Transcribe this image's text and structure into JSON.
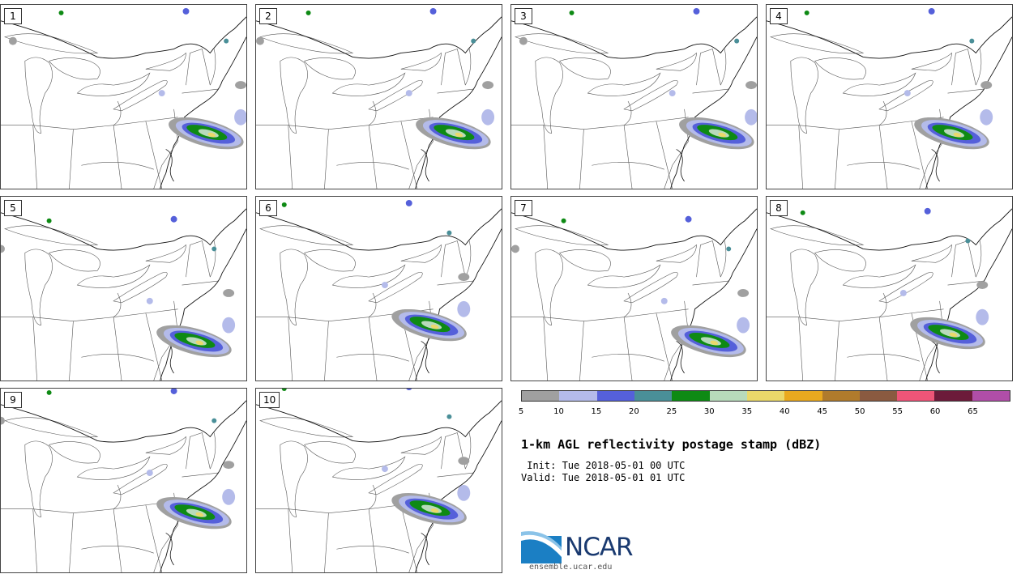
{
  "panels": [
    {
      "label": "1"
    },
    {
      "label": "2"
    },
    {
      "label": "3"
    },
    {
      "label": "4"
    },
    {
      "label": "5"
    },
    {
      "label": "6"
    },
    {
      "label": "7"
    },
    {
      "label": "8"
    },
    {
      "label": "9"
    },
    {
      "label": "10"
    }
  ],
  "colorbar": {
    "colors": [
      "#a0a0a0",
      "#b4bbea",
      "#5560da",
      "#4a8f98",
      "#0e8a14",
      "#b8dabb",
      "#ead86a",
      "#e9a91f",
      "#b07b2c",
      "#8a5a40",
      "#ee5578",
      "#6c1b3a",
      "#b04ea8"
    ],
    "ticks": [
      "5",
      "10",
      "15",
      "20",
      "25",
      "30",
      "35",
      "40",
      "45",
      "50",
      "55",
      "60",
      "65"
    ]
  },
  "title": "1-km AGL reflectivity postage stamp (dBZ)",
  "init_line": " Init: Tue 2018-05-01 00 UTC",
  "valid_line": "Valid: Tue 2018-05-01 01 UTC",
  "logo": {
    "name": "ncar-logo",
    "text": "NCAR"
  },
  "url": "ensemble.ucar.edu"
}
